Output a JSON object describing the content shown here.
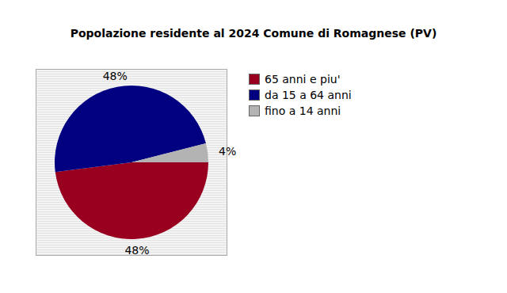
{
  "chart_data": {
    "type": "pie",
    "title": "Popolazione residente al 2024 Comune di Romagnese (PV)",
    "categories": [
      "65 anni e piu'",
      "da 15 a 64 anni",
      "fino a 14 anni"
    ],
    "values": [
      48,
      48,
      4
    ],
    "value_labels": [
      "48%",
      "48%",
      "4%"
    ],
    "colors": [
      "#990020",
      "#000080",
      "#b3b3b3"
    ],
    "legend": "right",
    "data_labels": true
  }
}
